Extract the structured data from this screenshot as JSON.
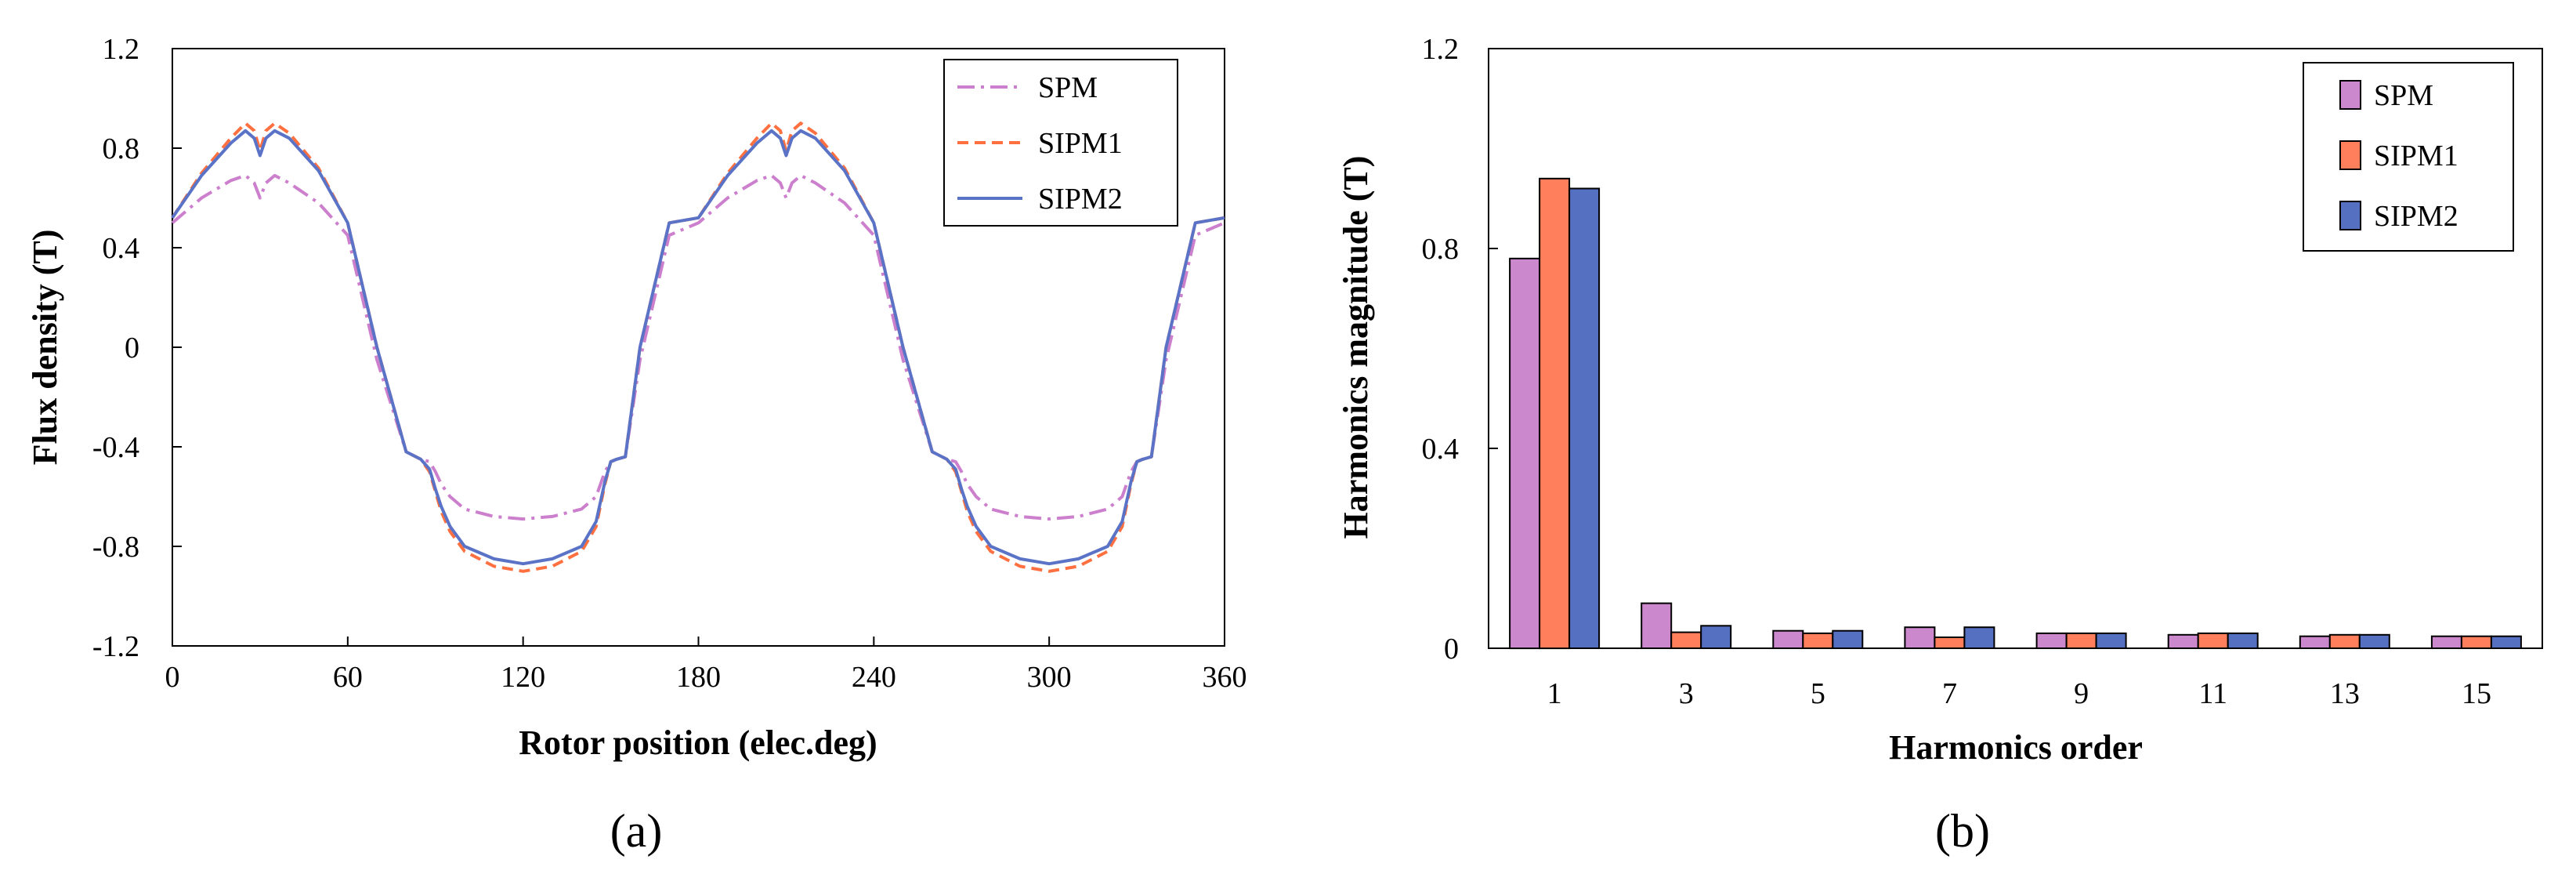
{
  "chart_data": [
    {
      "type": "line",
      "panel_label": "(a)",
      "title": "",
      "xlabel": "Rotor position (elec.deg)",
      "ylabel": "Flux density (T)",
      "xlim": [
        0,
        360
      ],
      "ylim": [
        -1.2,
        1.2
      ],
      "xticks": [
        0,
        60,
        120,
        180,
        240,
        300,
        360
      ],
      "xtick_labels": [
        "0",
        "60",
        "120",
        "180",
        "240",
        "300",
        "360"
      ],
      "yticks": [
        1.2,
        0.8,
        0.4,
        0,
        -0.4,
        -0.8,
        -1.2
      ],
      "ytick_labels": [
        "1.2",
        "0.8",
        "0.4",
        "0",
        "-0.4",
        "-0.8",
        "-1.2"
      ],
      "grid": false,
      "legend_position": "top-right",
      "x": [
        0,
        10,
        20,
        25,
        28,
        30,
        32,
        35,
        40,
        50,
        60,
        70,
        80,
        85,
        88,
        90,
        92,
        95,
        100,
        110,
        120,
        130,
        140,
        145,
        148,
        150,
        152,
        155,
        160,
        170,
        180,
        190,
        200,
        205,
        208,
        210,
        212,
        215,
        220,
        230,
        240,
        250,
        260,
        265,
        268,
        270,
        272,
        275,
        280,
        290,
        300,
        310,
        320,
        325,
        328,
        330,
        332,
        335,
        340,
        350,
        360
      ],
      "series": [
        {
          "name": "SPM",
          "color": "#cc7fcc",
          "dash": "dashdot",
          "values": [
            0.5,
            0.6,
            0.67,
            0.69,
            0.66,
            0.6,
            0.66,
            0.69,
            0.66,
            0.58,
            0.45,
            -0.05,
            -0.42,
            -0.45,
            -0.46,
            -0.5,
            -0.55,
            -0.6,
            -0.65,
            -0.68,
            -0.69,
            -0.68,
            -0.65,
            -0.6,
            -0.5,
            -0.46,
            -0.45,
            -0.44,
            -0.05,
            0.45,
            0.5,
            0.6,
            0.67,
            0.69,
            0.66,
            0.6,
            0.66,
            0.69,
            0.66,
            0.58,
            0.45,
            -0.05,
            -0.42,
            -0.45,
            -0.46,
            -0.5,
            -0.55,
            -0.6,
            -0.65,
            -0.68,
            -0.69,
            -0.68,
            -0.65,
            -0.6,
            -0.5,
            -0.46,
            -0.45,
            -0.44,
            -0.05,
            0.45,
            0.5
          ]
        },
        {
          "name": "SIPM1",
          "color": "#ff7040",
          "dash": "dashed",
          "values": [
            0.52,
            0.7,
            0.84,
            0.9,
            0.87,
            0.79,
            0.87,
            0.9,
            0.86,
            0.72,
            0.5,
            0.0,
            -0.42,
            -0.45,
            -0.5,
            -0.58,
            -0.66,
            -0.74,
            -0.82,
            -0.88,
            -0.9,
            -0.88,
            -0.82,
            -0.72,
            -0.55,
            -0.46,
            -0.45,
            -0.44,
            0.0,
            0.5,
            0.52,
            0.7,
            0.84,
            0.9,
            0.87,
            0.79,
            0.87,
            0.9,
            0.86,
            0.72,
            0.5,
            0.0,
            -0.42,
            -0.45,
            -0.5,
            -0.58,
            -0.66,
            -0.74,
            -0.82,
            -0.88,
            -0.9,
            -0.88,
            -0.82,
            -0.72,
            -0.55,
            -0.46,
            -0.45,
            -0.44,
            0.0,
            0.5,
            0.52
          ]
        },
        {
          "name": "SIPM2",
          "color": "#5b73c6",
          "dash": "solid",
          "values": [
            0.52,
            0.69,
            0.82,
            0.87,
            0.84,
            0.77,
            0.84,
            0.87,
            0.84,
            0.71,
            0.5,
            0.0,
            -0.42,
            -0.45,
            -0.49,
            -0.57,
            -0.64,
            -0.72,
            -0.8,
            -0.85,
            -0.87,
            -0.85,
            -0.8,
            -0.7,
            -0.54,
            -0.46,
            -0.45,
            -0.44,
            0.0,
            0.5,
            0.52,
            0.69,
            0.82,
            0.87,
            0.84,
            0.77,
            0.84,
            0.87,
            0.84,
            0.71,
            0.5,
            0.0,
            -0.42,
            -0.45,
            -0.49,
            -0.57,
            -0.64,
            -0.72,
            -0.8,
            -0.85,
            -0.87,
            -0.85,
            -0.8,
            -0.7,
            -0.54,
            -0.46,
            -0.45,
            -0.44,
            0.0,
            0.5,
            0.52
          ]
        }
      ]
    },
    {
      "type": "bar",
      "panel_label": "(b)",
      "title": "",
      "xlabel": "Harmonics order",
      "ylabel": "Harmonics magnitude (T)",
      "ylim": [
        0,
        1.2
      ],
      "yticks": [
        1.2,
        0.8,
        0.4,
        0
      ],
      "ytick_labels": [
        "1.2",
        "0.8",
        "0.4",
        "0"
      ],
      "grid": false,
      "legend_position": "top-right",
      "categories": [
        "1",
        "3",
        "5",
        "7",
        "9",
        "11",
        "13",
        "15"
      ],
      "series": [
        {
          "name": "SPM",
          "color": "#cc88cc",
          "values": [
            0.78,
            0.09,
            0.035,
            0.042,
            0.03,
            0.027,
            0.024,
            0.024
          ]
        },
        {
          "name": "SIPM1",
          "color": "#ff7f5c",
          "values": [
            0.94,
            0.032,
            0.03,
            0.022,
            0.03,
            0.03,
            0.027,
            0.024
          ]
        },
        {
          "name": "SIPM2",
          "color": "#5570c0",
          "values": [
            0.92,
            0.045,
            0.035,
            0.042,
            0.03,
            0.03,
            0.027,
            0.024
          ]
        }
      ]
    }
  ]
}
